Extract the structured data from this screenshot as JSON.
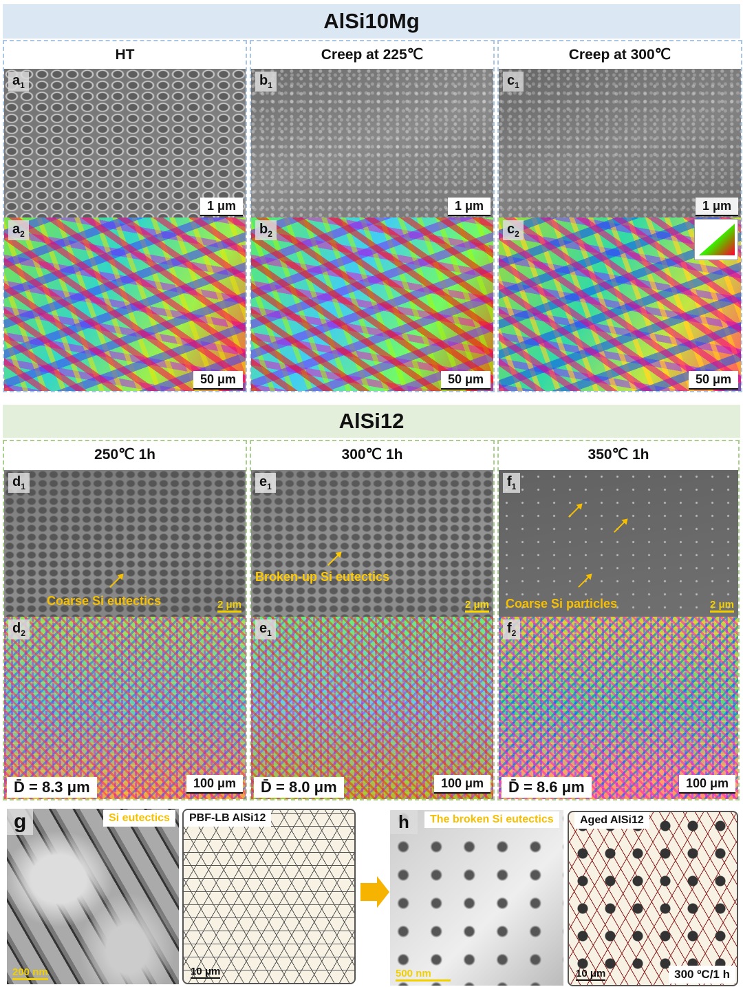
{
  "section1": {
    "title": "AlSi10Mg",
    "columns": [
      {
        "title": "HT",
        "sem": {
          "letter": "a",
          "sub": "1",
          "scale": "1 μm"
        },
        "ebsd": {
          "letter": "a",
          "sub": "2",
          "scale": "50 μm"
        }
      },
      {
        "title": "Creep at 225℃",
        "sem": {
          "letter": "b",
          "sub": "1",
          "scale": "1 μm"
        },
        "ebsd": {
          "letter": "b",
          "sub": "2",
          "scale": "50 μm"
        }
      },
      {
        "title": "Creep at 300℃",
        "sem": {
          "letter": "c",
          "sub": "1",
          "scale": "1 μm"
        },
        "ebsd": {
          "letter": "c",
          "sub": "2",
          "scale": "50 μm"
        }
      }
    ]
  },
  "section2": {
    "title": "AlSi12",
    "columns": [
      {
        "title": "250℃ 1h",
        "sem": {
          "letter": "d",
          "sub": "1",
          "scale": "2 μm",
          "annotation": "Coarse Si eutectics"
        },
        "ebsd": {
          "letter": "d",
          "sub": "2",
          "scale": "100 μm",
          "mean": "D̄ = 8.3 μm"
        }
      },
      {
        "title": "300℃ 1h",
        "sem": {
          "letter": "e",
          "sub": "1",
          "scale": "2 μm",
          "annotation": "Broken-up Si eutectics"
        },
        "ebsd": {
          "letter": "e",
          "sub": "1",
          "scale": "100 μm",
          "mean": "D̄ = 8.0 μm"
        }
      },
      {
        "title": "350℃ 1h",
        "sem": {
          "letter": "f",
          "sub": "1",
          "scale": "2 μm",
          "annotation": "Coarse Si particles"
        },
        "ebsd": {
          "letter": "f",
          "sub": "2",
          "scale": "100 μm",
          "mean": "D̄ = 8.6 μm"
        }
      }
    ]
  },
  "bottom": {
    "g": {
      "letter": "g",
      "caption": "Si eutectics",
      "scale": "200 nm"
    },
    "g_schematic": {
      "title": "PBF-LB AlSi12",
      "scale": "10 μm"
    },
    "h": {
      "letter": "h",
      "caption": "The broken Si eutectics",
      "scale": "500 nm"
    },
    "h_schematic": {
      "title": "Aged AlSi12",
      "scale": "10 μm",
      "condition": "300 ºC/1 h"
    }
  },
  "colors": {
    "annotation": "#f6c000",
    "band1": "#dbe7f3",
    "band2": "#e3eedb",
    "arrow": "#f6b400"
  }
}
